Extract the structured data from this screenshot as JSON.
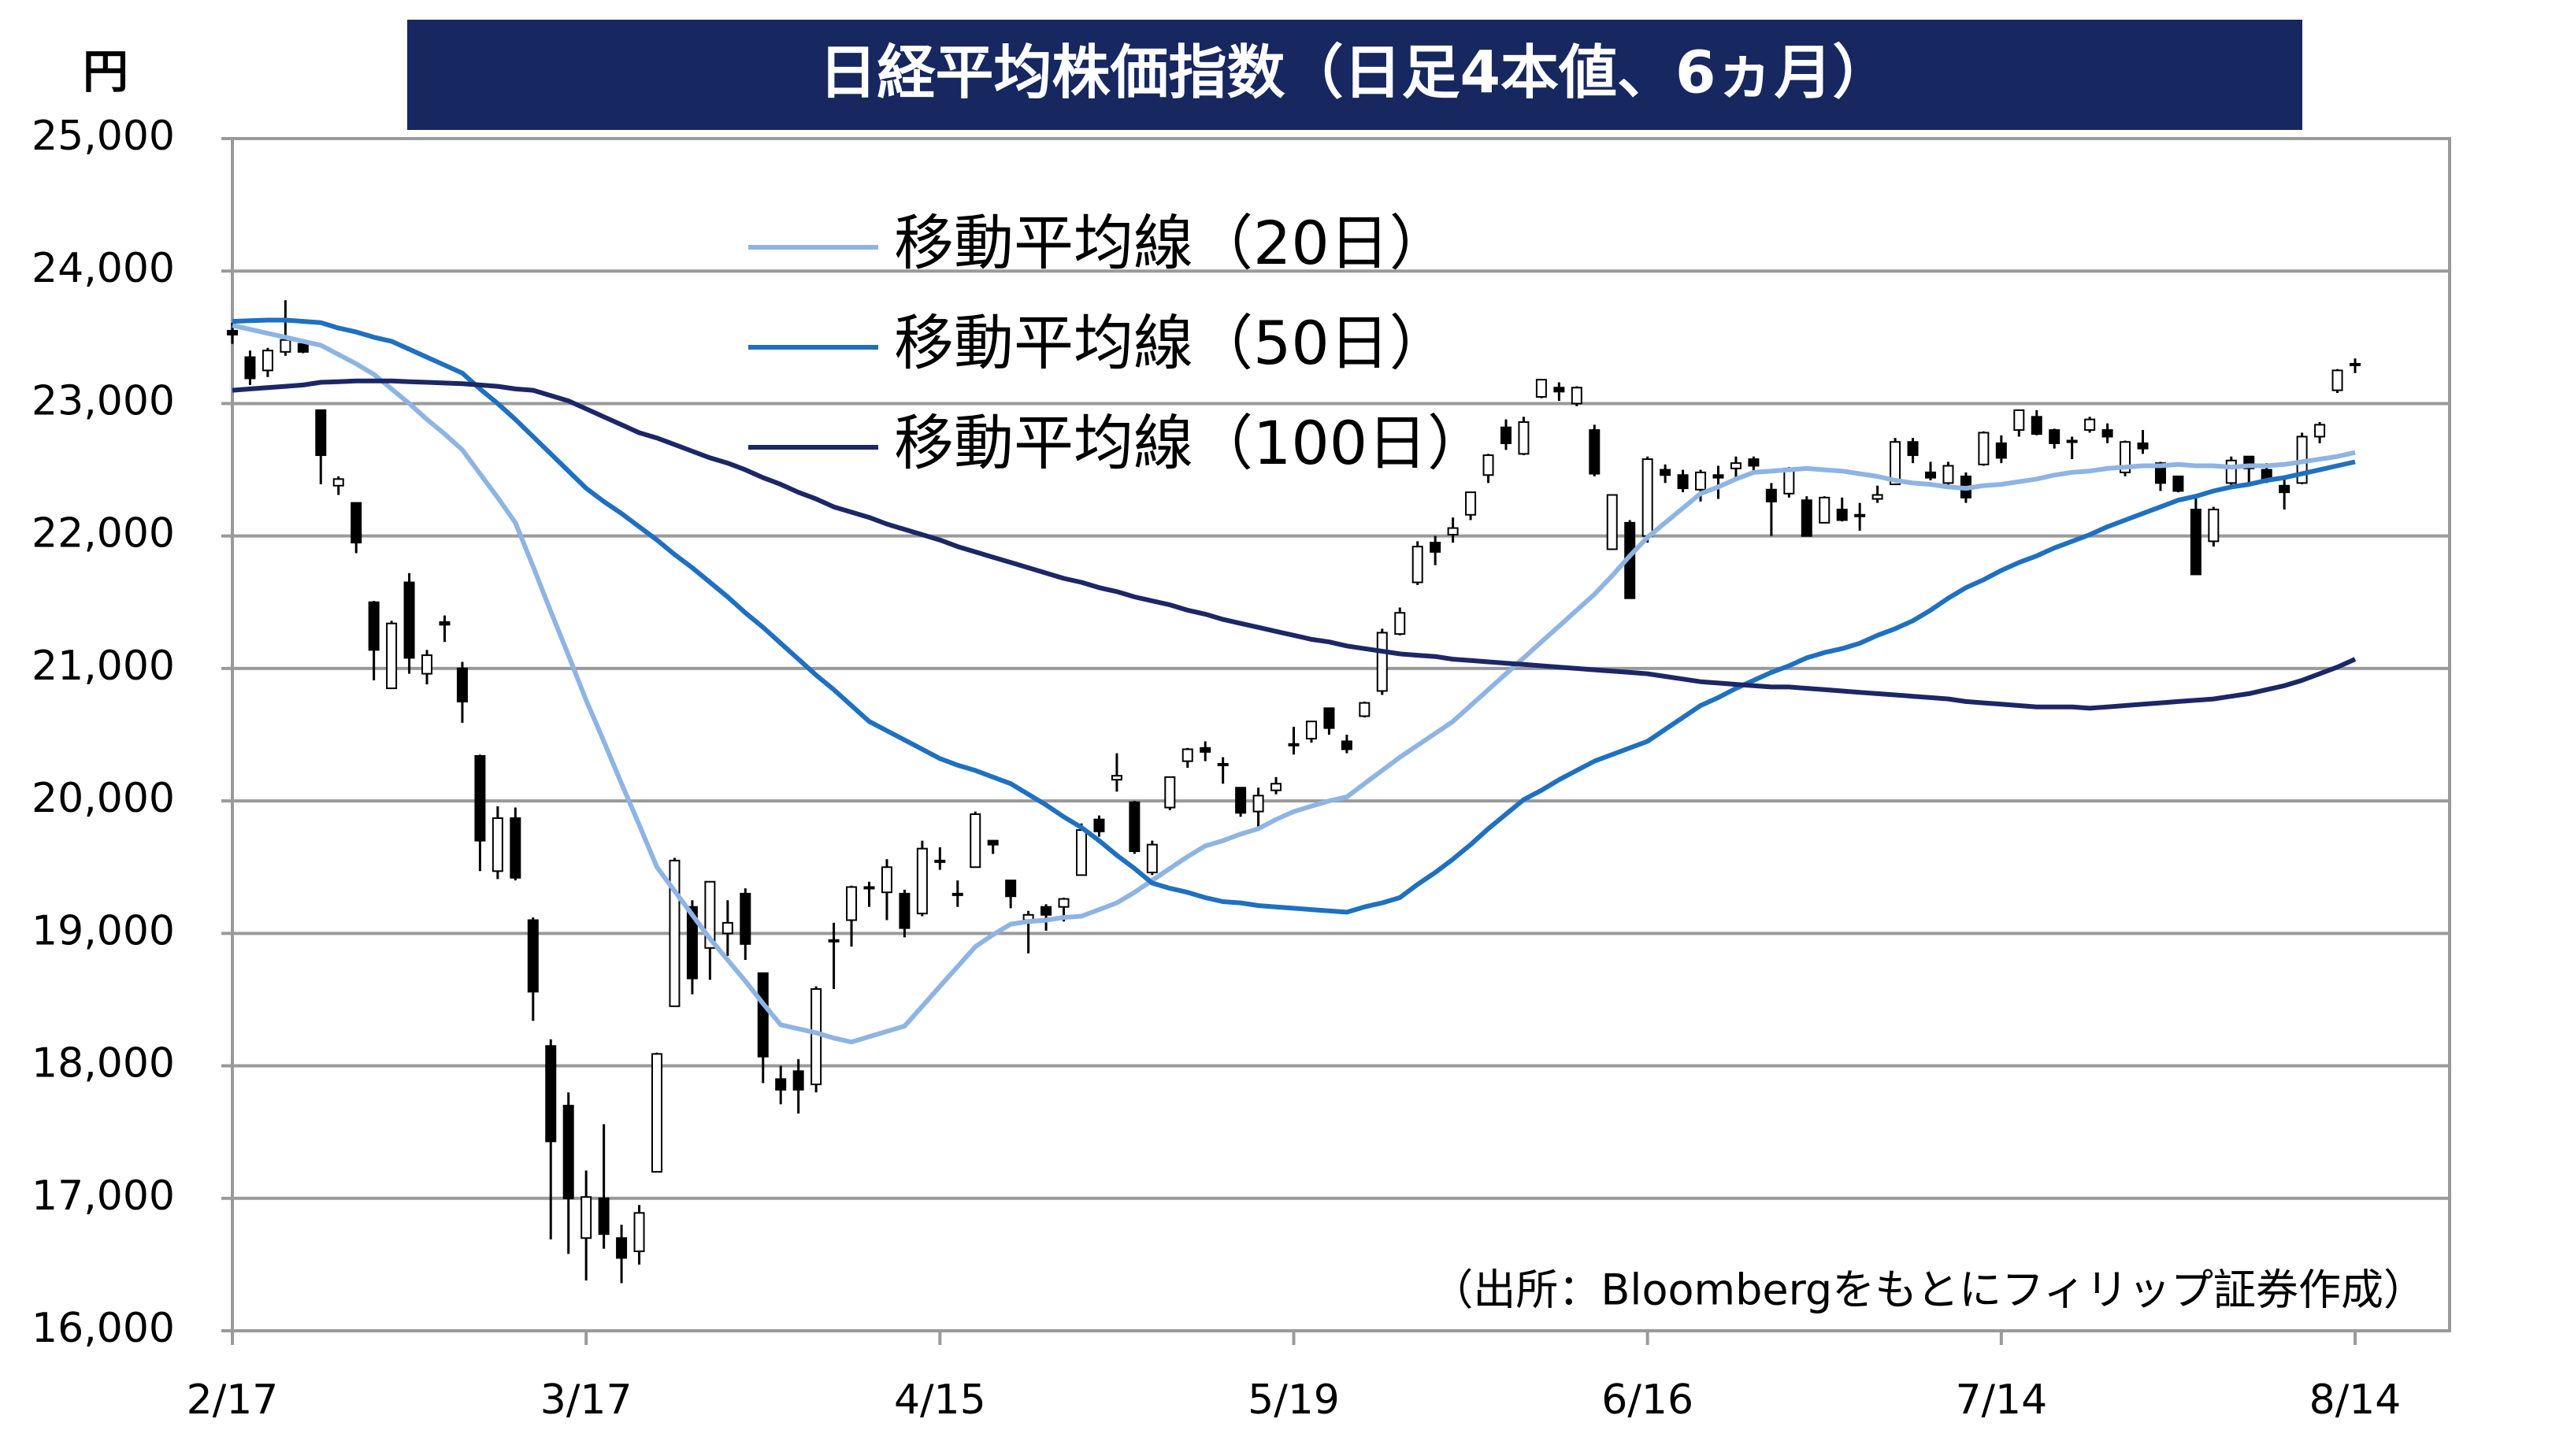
{
  "chart_data": {
    "type": "candlestick",
    "title": "日経平均株価指数（日足4本値、6ヵ月）",
    "y_unit": "円",
    "source": "（出所：Bloombergをもとにフィリップ証券作成）",
    "categories": [
      "2/17",
      null,
      null,
      null,
      null,
      null,
      null,
      null,
      null,
      null,
      null,
      null,
      null,
      null,
      null,
      null,
      null,
      null,
      null,
      null,
      "3/17",
      null,
      null,
      null,
      null,
      null,
      null,
      null,
      null,
      null,
      null,
      null,
      null,
      null,
      null,
      null,
      null,
      null,
      null,
      null,
      "4/15",
      null,
      null,
      null,
      null,
      null,
      null,
      null,
      null,
      null,
      null,
      null,
      null,
      null,
      null,
      null,
      null,
      null,
      null,
      null,
      "5/19",
      null,
      null,
      null,
      null,
      null,
      null,
      null,
      null,
      null,
      null,
      null,
      null,
      null,
      null,
      null,
      null,
      null,
      null,
      null,
      "6/16",
      null,
      null,
      null,
      null,
      null,
      null,
      null,
      null,
      null,
      null,
      null,
      null,
      null,
      null,
      null,
      null,
      null,
      null,
      null,
      "7/14",
      null,
      null,
      null,
      null,
      null,
      null,
      null,
      null,
      null,
      null,
      null,
      null,
      null,
      null,
      null,
      null,
      null,
      null,
      null,
      "8/14"
    ],
    "open": [
      23550,
      23350,
      23250,
      23390,
      23450,
      22950,
      22380,
      22250,
      21500,
      20850,
      21650,
      20960,
      21350,
      21000,
      20340,
      19470,
      19870,
      19100,
      18150,
      17700,
      16700,
      17000,
      16700,
      16600,
      17200,
      18450,
      19200,
      18890,
      19000,
      19300,
      18700,
      17900,
      17960,
      17860,
      18950,
      19100,
      19340,
      19310,
      19300,
      19150,
      19550,
      19300,
      19500,
      19700,
      19400,
      19100,
      19200,
      19200,
      19440,
      19860,
      20160,
      19990,
      19460,
      19950,
      20300,
      20400,
      20280,
      20100,
      19920,
      20080,
      20430,
      20470,
      20700,
      20450,
      20640,
      20830,
      21260,
      21650,
      21950,
      22010,
      22160,
      22460,
      22820,
      22620,
      23050,
      23120,
      23000,
      22800,
      21900,
      22100,
      22000,
      22500,
      22460,
      22350,
      22460,
      22510,
      22580,
      22350,
      22320,
      22270,
      22100,
      22200,
      22160,
      22280,
      22390,
      22710,
      22480,
      22400,
      22450,
      22540,
      22700,
      22800,
      22900,
      22800,
      22710,
      22800,
      22800,
      22480,
      22700,
      22550,
      22450,
      22200,
      21960,
      22400,
      22600,
      22500,
      22380,
      22400,
      22750,
      23100,
      23300
    ],
    "high": [
      23610,
      23400,
      23420,
      23780,
      23480,
      22950,
      22450,
      22250,
      21510,
      21360,
      21720,
      21140,
      21400,
      21050,
      20350,
      19960,
      19950,
      19120,
      18200,
      17800,
      17210,
      17560,
      16800,
      16950,
      18100,
      19570,
      19250,
      19390,
      19250,
      19340,
      18700,
      18000,
      18050,
      18600,
      19080,
      19360,
      19390,
      19560,
      19330,
      19700,
      19650,
      19400,
      19920,
      19700,
      19400,
      19170,
      19220,
      19270,
      19830,
      19890,
      20360,
      20000,
      19700,
      20180,
      20400,
      20450,
      20330,
      20100,
      20100,
      20180,
      20560,
      20600,
      20700,
      20500,
      20750,
      21300,
      21460,
      21960,
      22000,
      22140,
      22330,
      22620,
      22880,
      22900,
      23180,
      23160,
      23130,
      22840,
      22290,
      22120,
      22600,
      22540,
      22500,
      22500,
      22530,
      22600,
      22600,
      22400,
      22520,
      22300,
      22300,
      22290,
      22250,
      22380,
      22740,
      22740,
      22560,
      22560,
      22480,
      22790,
      22760,
      22950,
      22950,
      22810,
      22750,
      22900,
      22850,
      22720,
      22800,
      22560,
      22450,
      22290,
      22220,
      22600,
      22600,
      22550,
      22450,
      22780,
      22860,
      23260,
      23340
    ],
    "low": [
      23450,
      23140,
      23200,
      23360,
      23380,
      22390,
      22310,
      21870,
      20910,
      20850,
      20960,
      20880,
      21200,
      20590,
      19470,
      19410,
      19400,
      18340,
      16690,
      16580,
      16380,
      16620,
      16360,
      16500,
      17200,
      18450,
      18540,
      18650,
      18830,
      18800,
      17870,
      17710,
      17640,
      17800,
      18580,
      18900,
      19200,
      19100,
      18970,
      19130,
      19480,
      19200,
      19500,
      19600,
      19190,
      18850,
      19020,
      19090,
      19440,
      19730,
      20070,
      19600,
      19440,
      19930,
      20250,
      20300,
      20130,
      19880,
      19800,
      20050,
      20350,
      20440,
      20500,
      20360,
      20630,
      20800,
      21250,
      21630,
      21780,
      21950,
      22120,
      22400,
      22650,
      22610,
      23040,
      23020,
      22980,
      22450,
      21900,
      21530,
      21950,
      22400,
      22330,
      22260,
      22280,
      22430,
      22480,
      22000,
      22290,
      22000,
      22100,
      22110,
      22040,
      22250,
      22390,
      22550,
      22420,
      22360,
      22250,
      22530,
      22550,
      22750,
      22760,
      22660,
      22580,
      22780,
      22700,
      22450,
      22620,
      22340,
      22330,
      21710,
      21920,
      22380,
      22380,
      22400,
      22200,
      22390,
      22700,
      23080,
      23230
    ],
    "close": [
      23520,
      23190,
      23400,
      23480,
      23390,
      22610,
      22430,
      21950,
      21140,
      21340,
      21080,
      21100,
      21330,
      20750,
      19700,
      19870,
      19420,
      18560,
      17430,
      17000,
      17010,
      16730,
      16550,
      16890,
      18090,
      19550,
      18660,
      19390,
      19080,
      18920,
      18070,
      17820,
      17820,
      18580,
      18950,
      19350,
      19350,
      19500,
      19040,
      19640,
      19550,
      19290,
      19900,
      19670,
      19280,
      19140,
      19140,
      19260,
      19780,
      19770,
      20190,
      19620,
      19670,
      20180,
      20390,
      20370,
      20270,
      19910,
      20040,
      20130,
      20430,
      20600,
      20550,
      20390,
      20740,
      21270,
      21420,
      21920,
      21880,
      22060,
      22330,
      22610,
      22700,
      22860,
      23180,
      23090,
      23120,
      22470,
      22310,
      21530,
      22580,
      22460,
      22360,
      22480,
      22440,
      22550,
      22530,
      22260,
      22510,
      22000,
      22290,
      22120,
      22150,
      22310,
      22710,
      22610,
      22440,
      22530,
      22290,
      22780,
      22590,
      22950,
      22770,
      22700,
      22720,
      22880,
      22750,
      22710,
      22660,
      22400,
      22340,
      21710,
      22200,
      22570,
      22510,
      22420,
      22330,
      22750,
      22840,
      23250,
      23290
    ],
    "up_color": "#ffffff",
    "down_color": "#000000",
    "series": [
      {
        "name": "移動平均線（20日）",
        "color": "#8eb4e3",
        "values": [
          23590,
          23560,
          23530,
          23500,
          23470,
          23440,
          23370,
          23300,
          23220,
          23110,
          23000,
          22880,
          22770,
          22650,
          22470,
          22290,
          22100,
          21770,
          21430,
          21100,
          20760,
          20450,
          20130,
          19820,
          19500,
          19320,
          19140,
          18960,
          18800,
          18640,
          18470,
          18310,
          18280,
          18250,
          18210,
          18180,
          18220,
          18260,
          18300,
          18450,
          18600,
          18750,
          18900,
          18990,
          19070,
          19090,
          19100,
          19120,
          19130,
          19180,
          19230,
          19310,
          19400,
          19490,
          19580,
          19660,
          19700,
          19750,
          19790,
          19860,
          19920,
          19960,
          20000,
          20030,
          20130,
          20230,
          20330,
          20420,
          20510,
          20600,
          20720,
          20840,
          20960,
          21080,
          21200,
          21320,
          21440,
          21560,
          21700,
          21850,
          21990,
          22100,
          22210,
          22320,
          22370,
          22430,
          22480,
          22490,
          22500,
          22510,
          22500,
          22490,
          22470,
          22450,
          22420,
          22400,
          22390,
          22370,
          22360,
          22380,
          22390,
          22410,
          22430,
          22460,
          22480,
          22490,
          22510,
          22520,
          22530,
          22530,
          22540,
          22530,
          22530,
          22520,
          22530,
          22530,
          22540,
          22560,
          22580,
          22600,
          22630
        ]
      },
      {
        "name": "移動平均線（50日）",
        "color": "#1f70c1",
        "values": [
          23620,
          23625,
          23630,
          23630,
          23620,
          23610,
          23570,
          23540,
          23500,
          23470,
          23410,
          23350,
          23290,
          23230,
          23110,
          23000,
          22880,
          22750,
          22620,
          22490,
          22360,
          22260,
          22170,
          22070,
          21970,
          21860,
          21760,
          21650,
          21540,
          21420,
          21310,
          21190,
          21070,
          20950,
          20840,
          20720,
          20600,
          20530,
          20460,
          20390,
          20320,
          20270,
          20230,
          20180,
          20130,
          20050,
          19970,
          19880,
          19800,
          19700,
          19590,
          19490,
          19380,
          19340,
          19310,
          19270,
          19240,
          19230,
          19210,
          19200,
          19190,
          19180,
          19170,
          19160,
          19200,
          19230,
          19270,
          19370,
          19460,
          19560,
          19670,
          19790,
          19900,
          20010,
          20080,
          20160,
          20230,
          20300,
          20350,
          20400,
          20450,
          20540,
          20630,
          20720,
          20780,
          20850,
          20910,
          20970,
          21020,
          21080,
          21120,
          21150,
          21190,
          21250,
          21300,
          21360,
          21440,
          21530,
          21610,
          21670,
          21740,
          21800,
          21850,
          21910,
          21960,
          22010,
          22070,
          22120,
          22170,
          22220,
          22270,
          22300,
          22340,
          22370,
          22390,
          22420,
          22440,
          22470,
          22500,
          22530,
          22560
        ]
      },
      {
        "name": "移動平均線（100日）",
        "color": "#1b2766",
        "values": [
          23100,
          23110,
          23120,
          23130,
          23140,
          23160,
          23165,
          23170,
          23170,
          23170,
          23165,
          23160,
          23155,
          23150,
          23140,
          23130,
          23110,
          23100,
          23060,
          23020,
          22960,
          22900,
          22840,
          22780,
          22740,
          22690,
          22640,
          22590,
          22550,
          22500,
          22440,
          22390,
          22330,
          22280,
          22220,
          22180,
          22140,
          22090,
          22050,
          22010,
          21970,
          21920,
          21880,
          21840,
          21800,
          21760,
          21720,
          21680,
          21650,
          21610,
          21580,
          21540,
          21510,
          21480,
          21440,
          21410,
          21370,
          21340,
          21310,
          21280,
          21250,
          21220,
          21200,
          21170,
          21150,
          21130,
          21110,
          21100,
          21090,
          21070,
          21060,
          21050,
          21040,
          21030,
          21020,
          21010,
          21000,
          20990,
          20980,
          20970,
          20960,
          20940,
          20920,
          20900,
          20890,
          20880,
          20870,
          20860,
          20860,
          20850,
          20840,
          20830,
          20820,
          20810,
          20800,
          20790,
          20780,
          20770,
          20750,
          20740,
          20730,
          20720,
          20710,
          20710,
          20710,
          20700,
          20710,
          20720,
          20730,
          20740,
          20750,
          20760,
          20770,
          20790,
          20810,
          20840,
          20870,
          20910,
          20960,
          21010,
          21070
        ]
      }
    ],
    "ylim": [
      16000,
      25000
    ],
    "yticks": [
      {
        "value": 16000,
        "label": "16,000"
      },
      {
        "value": 17000,
        "label": "17,000"
      },
      {
        "value": 18000,
        "label": "18,000"
      },
      {
        "value": 19000,
        "label": "19,000"
      },
      {
        "value": 20000,
        "label": "20,000"
      },
      {
        "value": 21000,
        "label": "21,000"
      },
      {
        "value": 22000,
        "label": "22,000"
      },
      {
        "value": 23000,
        "label": "23,000"
      },
      {
        "value": 24000,
        "label": "24,000"
      },
      {
        "value": 25000,
        "label": "25,000"
      }
    ],
    "grid": true,
    "legend": "upper-left"
  }
}
